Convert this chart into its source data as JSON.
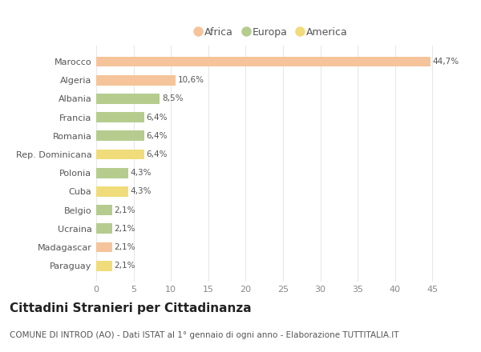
{
  "categories": [
    "Marocco",
    "Algeria",
    "Albania",
    "Francia",
    "Romania",
    "Rep. Dominicana",
    "Polonia",
    "Cuba",
    "Belgio",
    "Ucraina",
    "Madagascar",
    "Paraguay"
  ],
  "values": [
    44.7,
    10.6,
    8.5,
    6.4,
    6.4,
    6.4,
    4.3,
    4.3,
    2.1,
    2.1,
    2.1,
    2.1
  ],
  "labels": [
    "44,7%",
    "10,6%",
    "8,5%",
    "6,4%",
    "6,4%",
    "6,4%",
    "4,3%",
    "4,3%",
    "2,1%",
    "2,1%",
    "2,1%",
    "2,1%"
  ],
  "colors": [
    "#F5C49A",
    "#F5C49A",
    "#B5CC8E",
    "#B5CC8E",
    "#B5CC8E",
    "#F0DC7A",
    "#B5CC8E",
    "#F0DC7A",
    "#B5CC8E",
    "#B5CC8E",
    "#F5C49A",
    "#F0DC7A"
  ],
  "legend_labels": [
    "Africa",
    "Europa",
    "America"
  ],
  "legend_colors": [
    "#F5C49A",
    "#B5CC8E",
    "#F0DC7A"
  ],
  "title": "Cittadini Stranieri per Cittadinanza",
  "subtitle": "COMUNE DI INTROD (AO) - Dati ISTAT al 1° gennaio di ogni anno - Elaborazione TUTTITALIA.IT",
  "xlim": [
    0,
    47
  ],
  "xticks": [
    0,
    5,
    10,
    15,
    20,
    25,
    30,
    35,
    40,
    45
  ],
  "background_color": "#ffffff",
  "grid_color": "#e8e8e8",
  "title_fontsize": 11,
  "subtitle_fontsize": 7.5,
  "label_fontsize": 7.5,
  "tick_fontsize": 8,
  "legend_fontsize": 9
}
